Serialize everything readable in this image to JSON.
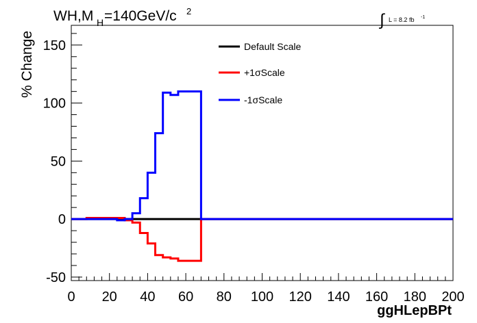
{
  "chart_data": {
    "type": "line",
    "title_main": "WH,M",
    "title_sub": "H",
    "title_rest": "=140GeV/c",
    "title_sup": "2",
    "lumi_text": "L = 8.2 fb",
    "lumi_sup": "-1",
    "xlabel": "ggHLepBPt",
    "ylabel": "% Change",
    "xlim": [
      0,
      200
    ],
    "ylim": [
      -53,
      167
    ],
    "x_ticks": [
      0,
      20,
      40,
      60,
      80,
      100,
      120,
      140,
      160,
      180,
      200
    ],
    "x_tick_labels": [
      "0",
      "20",
      "40",
      "60",
      "80",
      "100",
      "120",
      "140",
      "160",
      "180",
      "200"
    ],
    "y_ticks": [
      -50,
      0,
      50,
      100,
      150
    ],
    "y_tick_labels": [
      "-50",
      "0",
      "50",
      "100",
      "150"
    ],
    "grid": false,
    "legend_position": "top-right",
    "series": [
      {
        "name": "Default Scale",
        "color": "#000000",
        "edges": [
          0,
          200
        ],
        "values": [
          0
        ]
      },
      {
        "name": "+1σScale",
        "color": "#ff0000",
        "edges": [
          0,
          8,
          24,
          28,
          32,
          36,
          40,
          44,
          48,
          52,
          56,
          68,
          200
        ],
        "values": [
          0,
          1,
          1,
          -1,
          -3,
          -12,
          -21,
          -31,
          -33,
          -34,
          -36,
          0
        ]
      },
      {
        "name": "-1σScale",
        "color": "#0000ff",
        "edges": [
          0,
          24,
          28,
          32,
          36,
          40,
          44,
          48,
          52,
          56,
          68,
          200
        ],
        "values": [
          0,
          -1,
          0,
          5,
          18,
          40,
          74,
          109,
          107,
          110,
          0
        ]
      }
    ]
  }
}
